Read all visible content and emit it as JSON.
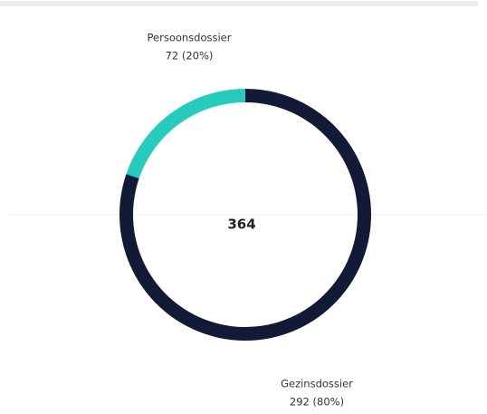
{
  "chart_data": {
    "type": "donut",
    "categories": [
      "Persoonsdossier",
      "Gezinsdossier"
    ],
    "values": [
      72,
      292
    ],
    "value_labels": [
      "72 (20%)",
      "292 (80%)"
    ],
    "colors": [
      "#26cbbd",
      "#131a35"
    ],
    "total": 364
  }
}
